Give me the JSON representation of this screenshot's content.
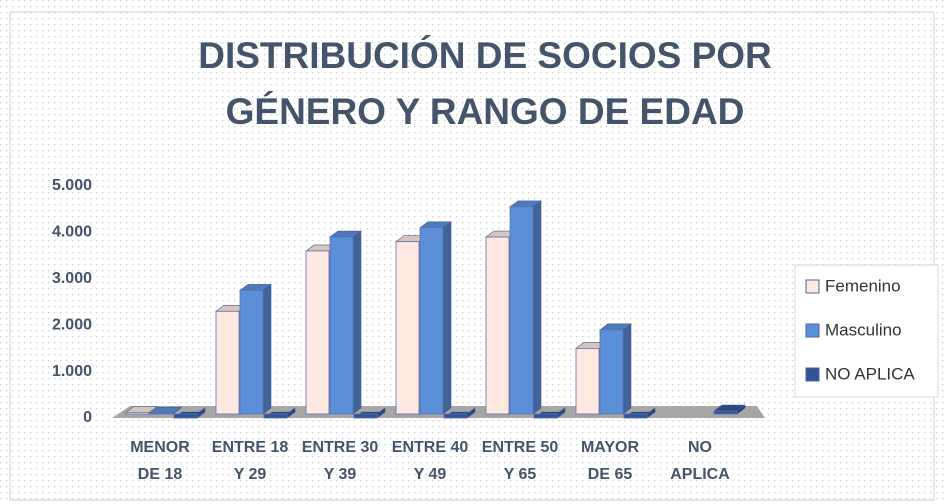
{
  "chart_data": {
    "type": "bar3d",
    "title": "DISTRIBUCIÓN DE SOCIOS POR GÉNERO Y RANGO DE EDAD",
    "categories": [
      "MENOR DE 18",
      "ENTRE 18 Y 29",
      "ENTRE 30 Y 39",
      "ENTRE 40 Y 49",
      "ENTRE 50 Y 65",
      "MAYOR DE 65",
      "NO APLICA"
    ],
    "series": [
      {
        "name": "Femenino",
        "color": "#fde9e0",
        "values": [
          120,
          2300,
          3600,
          3800,
          3900,
          1500,
          0
        ]
      },
      {
        "name": "Masculino",
        "color": "#5b8fd8",
        "values": [
          100,
          2750,
          3900,
          4100,
          4550,
          1900,
          0
        ]
      },
      {
        "name": "NO APLICA",
        "color": "#2f5597",
        "values": [
          0,
          0,
          0,
          0,
          0,
          0,
          150
        ]
      }
    ],
    "ylim": [
      0,
      5000
    ],
    "yticks": [
      0,
      {
        "value": 1000,
        "label": "1.000"
      },
      {
        "value": 2000,
        "label": "2.000"
      },
      {
        "value": 3000,
        "label": "3.000"
      },
      {
        "value": 4000,
        "label": "4.000"
      },
      {
        "value": 5000,
        "label": "5.000"
      }
    ],
    "legend": "right"
  }
}
